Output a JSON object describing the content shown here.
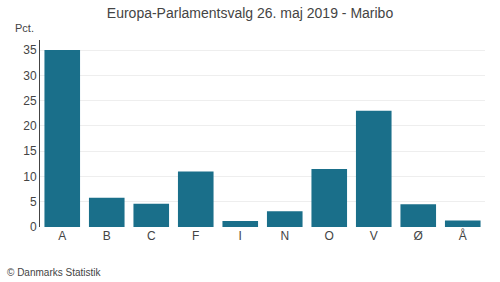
{
  "chart_data": {
    "type": "bar",
    "title": "Europa-Parlamentsvalg 26. maj 2019 - Maribo",
    "categories": [
      "A",
      "B",
      "C",
      "F",
      "I",
      "N",
      "O",
      "V",
      "Ø",
      "Å"
    ],
    "values": [
      35.0,
      5.8,
      4.6,
      11.0,
      1.2,
      3.1,
      11.5,
      23.0,
      4.5,
      1.3
    ],
    "color": "#1a6f8a",
    "ylabel": "Pct.",
    "ylim": [
      0,
      37
    ],
    "yticks": [
      0,
      5,
      10,
      15,
      20,
      25,
      30,
      35
    ],
    "grid": true,
    "annotations": [
      "© Danmarks Statistik"
    ]
  }
}
